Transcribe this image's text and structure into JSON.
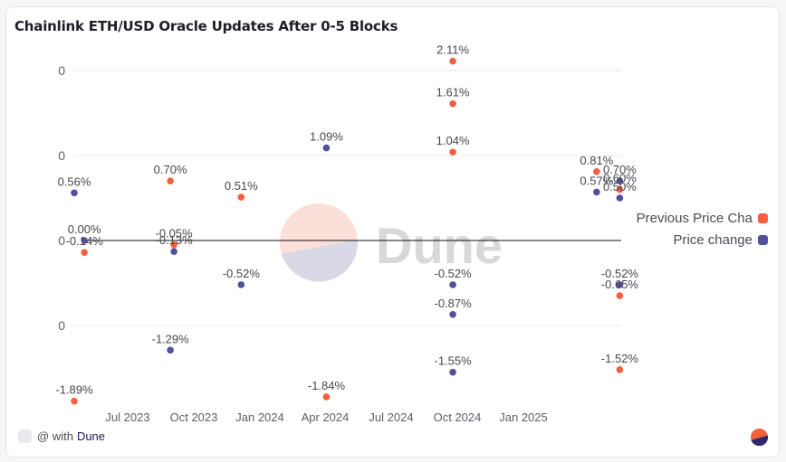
{
  "card": {
    "title": "Chainlink ETH/USD Oracle Updates After 0-5 Blocks",
    "footer_prefix": "@ with",
    "footer_brand": "Dune",
    "watermark_text": "Dune"
  },
  "colors": {
    "previous_price_change": "#f4603e",
    "price_change": "#534f9b",
    "gridline": "#e8eaee",
    "zero_line": "#111111"
  },
  "chart_data": {
    "type": "scatter",
    "title": "Chainlink ETH/USD Oracle Updates After 0-5 Blocks",
    "xlabel": "",
    "ylabel": "",
    "x_ticks": [
      "Jul 2023",
      "Oct 2023",
      "Jan 2024",
      "Apr 2024",
      "Jul 2024",
      "Oct 2024",
      "Jan 2025"
    ],
    "x_tick_dates": [
      "2023-07-01",
      "2023-10-01",
      "2024-01-01",
      "2024-04-01",
      "2024-07-01",
      "2024-10-01",
      "2025-01-01"
    ],
    "xlim": [
      "2023-04-18",
      "2025-05-14"
    ],
    "y_ticks": [
      2,
      1,
      0,
      -1
    ],
    "y_tick_labels": [
      "0",
      "0",
      "0",
      "0"
    ],
    "ylim": [
      -2.0,
      2.2
    ],
    "grid": true,
    "legend": "right",
    "series": [
      {
        "name": "Previous Price Change",
        "legend_label": "Previous Price Cha",
        "color": "#f4603e",
        "points": [
          {
            "date": "2023-04-18",
            "value": -1.89,
            "label": "-1.89%"
          },
          {
            "date": "2023-05-02",
            "value": -0.14,
            "label": "-0.14%"
          },
          {
            "date": "2023-08-29",
            "value": 0.7,
            "label": "0.70%"
          },
          {
            "date": "2023-09-03",
            "value": -0.05,
            "label": "-0.05%"
          },
          {
            "date": "2023-12-05",
            "value": 0.51,
            "label": "0.51%"
          },
          {
            "date": "2024-04-01",
            "value": -1.84,
            "label": "-1.84%"
          },
          {
            "date": "2024-09-23",
            "value": 2.11,
            "label": "2.11%"
          },
          {
            "date": "2024-09-23",
            "value": 1.61,
            "label": "1.61%"
          },
          {
            "date": "2024-09-23",
            "value": 1.04,
            "label": "1.04%"
          },
          {
            "date": "2025-04-10",
            "value": 0.81,
            "label": "0.81%"
          },
          {
            "date": "2025-05-12",
            "value": 0.6,
            "label": "0.60%"
          },
          {
            "date": "2025-05-12",
            "value": -0.65,
            "label": "-0.65%"
          },
          {
            "date": "2025-05-12",
            "value": -1.52,
            "label": "-1.52%"
          }
        ]
      },
      {
        "name": "Price change",
        "legend_label": "Price change",
        "color": "#534f9b",
        "points": [
          {
            "date": "2023-04-18",
            "value": 0.56,
            "label": "0.56%"
          },
          {
            "date": "2023-05-02",
            "value": 0.0,
            "label": "0.00%"
          },
          {
            "date": "2023-08-29",
            "value": -1.29,
            "label": "-1.29%"
          },
          {
            "date": "2023-09-03",
            "value": -0.13,
            "label": "-0.13%"
          },
          {
            "date": "2023-12-05",
            "value": -0.52,
            "label": "-0.52%"
          },
          {
            "date": "2024-04-01",
            "value": 1.09,
            "label": "1.09%"
          },
          {
            "date": "2024-09-23",
            "value": -0.52,
            "label": "-0.52%"
          },
          {
            "date": "2024-09-23",
            "value": -0.87,
            "label": "-0.87%"
          },
          {
            "date": "2024-09-23",
            "value": -1.55,
            "label": "-1.55%"
          },
          {
            "date": "2025-04-10",
            "value": 0.57,
            "label": "0.57%"
          },
          {
            "date": "2025-05-12",
            "value": 0.7,
            "label": "0.70%"
          },
          {
            "date": "2025-05-12",
            "value": 0.5,
            "label": "0.50%"
          },
          {
            "date": "2025-05-12",
            "value": -0.52,
            "label": "-0.52%"
          }
        ]
      }
    ]
  }
}
